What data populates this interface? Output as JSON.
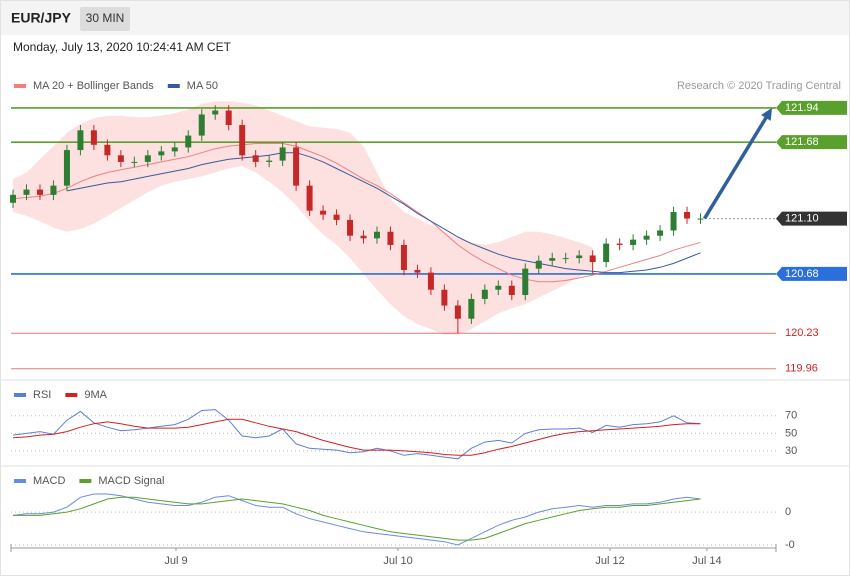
{
  "header": {
    "symbol": "EUR/JPY",
    "timeframe": "30 MIN",
    "datetime": "Monday, July 13, 2020 10:24:41 AM CET"
  },
  "chart_data": [
    {
      "type": "candlestick",
      "annotation": "Research © 2020 Trading Central",
      "xlim": [
        -0.15,
        56.6
      ],
      "xticks": [
        {
          "value": 12.09,
          "label": "Jul 9"
        },
        {
          "value": 28.56,
          "label": "Jul 10"
        },
        {
          "value": 44.29,
          "label": "Jul 12"
        },
        {
          "value": 51.48,
          "label": "Jul 14"
        }
      ],
      "ylim": [
        119.89,
        122.0
      ],
      "up_color": "#2e7d32",
      "down_color": "#c62828",
      "candles": {
        "open": [
          121.22,
          121.28,
          121.32,
          121.28,
          121.35,
          121.62,
          121.77,
          121.66,
          121.58,
          121.53,
          121.53,
          121.58,
          121.61,
          121.64,
          121.73,
          121.89,
          121.92,
          121.81,
          121.58,
          121.53,
          121.54,
          121.64,
          121.35,
          121.16,
          121.13,
          121.09,
          120.97,
          120.95,
          121.0,
          120.9,
          120.71,
          120.69,
          120.56,
          120.44,
          120.34,
          120.49,
          120.56,
          120.59,
          120.52,
          120.72,
          120.78,
          120.8,
          120.8,
          120.82,
          120.77,
          120.91,
          120.9,
          120.94,
          120.97,
          121.01,
          121.15,
          121.1
        ],
        "high": [
          121.32,
          121.36,
          121.36,
          121.39,
          121.66,
          121.81,
          121.81,
          121.7,
          121.62,
          121.57,
          121.62,
          121.65,
          121.68,
          121.77,
          121.93,
          121.96,
          121.96,
          121.85,
          121.62,
          121.58,
          121.68,
          121.68,
          121.39,
          121.2,
          121.17,
          121.13,
          121.01,
          121.04,
          121.04,
          120.94,
          120.75,
          120.73,
          120.6,
          120.48,
          120.53,
          120.6,
          120.63,
          120.63,
          120.76,
          120.82,
          120.84,
          120.84,
          120.86,
          120.86,
          120.95,
          120.95,
          120.98,
          121.01,
          121.05,
          121.19,
          121.19,
          121.14
        ],
        "low": [
          121.18,
          121.24,
          121.24,
          121.24,
          121.31,
          121.58,
          121.62,
          121.54,
          121.49,
          121.49,
          121.49,
          121.54,
          121.57,
          121.6,
          121.69,
          121.85,
          121.77,
          121.54,
          121.49,
          121.49,
          121.5,
          121.31,
          121.12,
          121.09,
          121.05,
          120.93,
          120.91,
          120.91,
          120.86,
          120.67,
          120.65,
          120.52,
          120.4,
          120.23,
          120.3,
          120.45,
          120.52,
          120.48,
          120.48,
          120.68,
          120.74,
          120.76,
          120.76,
          120.68,
          120.73,
          120.86,
          120.86,
          120.9,
          120.93,
          120.97,
          121.06,
          121.06
        ],
        "close": [
          121.28,
          121.32,
          121.28,
          121.35,
          121.62,
          121.77,
          121.66,
          121.58,
          121.53,
          121.53,
          121.58,
          121.61,
          121.64,
          121.73,
          121.89,
          121.92,
          121.81,
          121.58,
          121.53,
          121.54,
          121.64,
          121.35,
          121.16,
          121.13,
          121.09,
          120.97,
          120.95,
          121.0,
          120.9,
          120.71,
          120.69,
          120.56,
          120.44,
          120.34,
          120.49,
          120.56,
          120.59,
          120.52,
          120.72,
          120.78,
          120.8,
          120.8,
          120.82,
          120.77,
          120.91,
          120.9,
          120.94,
          120.97,
          121.01,
          121.15,
          121.1,
          121.1
        ]
      },
      "series": [
        {
          "name": "MA 20 + Bollinger Bands",
          "color": "#f08080",
          "band_color": "#fde0e0",
          "values": [
            121.25,
            121.26,
            121.27,
            121.29,
            121.33,
            121.38,
            121.42,
            121.45,
            121.47,
            121.49,
            121.51,
            121.53,
            121.55,
            121.57,
            121.6,
            121.63,
            121.65,
            121.66,
            121.67,
            121.67,
            121.67,
            121.65,
            121.61,
            121.57,
            121.52,
            121.46,
            121.4,
            121.35,
            121.29,
            121.22,
            121.15,
            121.08,
            120.99,
            120.9,
            120.83,
            120.77,
            120.72,
            120.67,
            120.64,
            120.62,
            120.62,
            120.63,
            120.65,
            120.67,
            120.7,
            120.73,
            120.76,
            120.79,
            120.82,
            120.86,
            120.89,
            120.92
          ],
          "upper": [
            121.4,
            121.45,
            121.55,
            121.65,
            121.75,
            121.82,
            121.86,
            121.88,
            121.88,
            121.87,
            121.87,
            121.88,
            121.9,
            121.93,
            121.97,
            121.99,
            121.99,
            121.98,
            121.96,
            121.92,
            121.88,
            121.84,
            121.8,
            121.79,
            121.78,
            121.75,
            121.65,
            121.45,
            121.25,
            121.15,
            121.1,
            121.05,
            121.0,
            120.95,
            120.92,
            120.9,
            120.92,
            120.96,
            121.0,
            121.0,
            120.98,
            120.95,
            120.92,
            120.88,
            null,
            null,
            null,
            null,
            null,
            null,
            null,
            null
          ],
          "lower": [
            121.15,
            121.12,
            121.08,
            121.03,
            121.0,
            121.02,
            121.06,
            121.12,
            121.18,
            121.24,
            121.3,
            121.35,
            121.38,
            121.4,
            121.42,
            121.45,
            121.48,
            121.5,
            121.45,
            121.38,
            121.3,
            121.2,
            121.08,
            120.98,
            120.9,
            120.8,
            120.68,
            120.56,
            120.45,
            120.36,
            120.3,
            120.26,
            120.22,
            120.22,
            120.26,
            120.32,
            120.38,
            120.42,
            120.45,
            120.5,
            120.55,
            120.6,
            120.66,
            120.72,
            null,
            null,
            null,
            null,
            null,
            null,
            null,
            null
          ]
        },
        {
          "name": "MA 50",
          "color": "#3a5a9a",
          "values": [
            null,
            null,
            null,
            null,
            121.31,
            121.33,
            121.35,
            121.37,
            121.38,
            121.4,
            121.42,
            121.44,
            121.46,
            121.48,
            121.51,
            121.53,
            121.55,
            121.56,
            121.57,
            121.58,
            121.6,
            121.6,
            121.57,
            121.53,
            121.48,
            121.43,
            121.38,
            121.33,
            121.27,
            121.21,
            121.14,
            121.08,
            121.02,
            120.96,
            120.91,
            120.87,
            120.83,
            120.8,
            120.78,
            120.76,
            120.74,
            120.72,
            120.71,
            120.7,
            120.69,
            120.69,
            120.7,
            120.71,
            120.73,
            120.76,
            120.8,
            120.84
          ]
        }
      ],
      "levels": [
        {
          "value": 121.94,
          "color": "#5aa02c",
          "box": true,
          "line": "solid"
        },
        {
          "value": 121.68,
          "color": "#5aa02c",
          "box": true,
          "line": "solid"
        },
        {
          "value": 121.1,
          "label": "121.10",
          "color": "#333333",
          "box": true,
          "line": "dotted"
        },
        {
          "value": 120.68,
          "color": "#2a6fdb",
          "box": true,
          "line": "solid"
        },
        {
          "value": 120.23,
          "color": "#d62020",
          "box": false,
          "line": "solid"
        },
        {
          "value": 119.96,
          "color": "#d62020",
          "box": false,
          "line": "solid"
        }
      ],
      "arrow_color": "#2f5f9f"
    },
    {
      "type": "line",
      "ylim": [
        14,
        105
      ],
      "yticks": [
        30,
        50,
        70
      ],
      "grid": true,
      "series": [
        {
          "name": "RSI",
          "color": "#5b7fd6",
          "values": [
            48,
            50,
            52,
            49,
            65,
            75,
            62,
            57,
            53,
            54,
            56,
            58,
            60,
            66,
            76,
            77,
            65,
            47,
            45,
            47,
            55,
            38,
            33,
            32,
            31,
            28,
            29,
            33,
            30,
            25,
            27,
            25,
            23,
            21,
            33,
            40,
            42,
            39,
            50,
            54,
            55,
            55,
            56,
            51,
            59,
            57,
            60,
            61,
            63,
            70,
            62,
            61
          ]
        },
        {
          "name": "9MA",
          "color": "#d62020",
          "values": [
            45,
            46,
            48,
            49,
            52,
            57,
            61,
            63,
            61,
            58,
            56,
            56,
            56,
            57,
            60,
            63,
            66,
            66,
            62,
            58,
            55,
            52,
            47,
            42,
            38,
            34,
            31,
            31,
            31,
            30,
            29,
            28,
            26,
            25,
            25,
            28,
            32,
            35,
            39,
            43,
            47,
            50,
            52,
            53,
            54,
            55,
            56,
            57,
            58,
            60,
            61,
            61
          ]
        }
      ]
    },
    {
      "type": "line",
      "ylim": [
        -0.2,
        0.25
      ],
      "yticks": [
        {
          "value": -0.2,
          "label": "-0"
        },
        0
      ],
      "grid": true,
      "series": [
        {
          "name": "MACD",
          "color": "#6a8cdc",
          "values": [
            -0.02,
            -0.01,
            -0.01,
            0.0,
            0.03,
            0.09,
            0.11,
            0.11,
            0.1,
            0.08,
            0.06,
            0.05,
            0.04,
            0.04,
            0.06,
            0.09,
            0.1,
            0.07,
            0.04,
            0.03,
            0.03,
            -0.01,
            -0.04,
            -0.06,
            -0.08,
            -0.1,
            -0.12,
            -0.13,
            -0.14,
            -0.15,
            -0.16,
            -0.17,
            -0.18,
            -0.2,
            -0.16,
            -0.12,
            -0.08,
            -0.05,
            -0.03,
            0.0,
            0.02,
            0.03,
            0.04,
            0.03,
            0.04,
            0.04,
            0.05,
            0.05,
            0.06,
            0.08,
            0.09,
            0.08
          ]
        },
        {
          "name": "MACD Signal",
          "color": "#5aa02c",
          "values": [
            -0.02,
            -0.02,
            -0.02,
            -0.01,
            0.0,
            0.02,
            0.05,
            0.08,
            0.09,
            0.09,
            0.08,
            0.07,
            0.06,
            0.05,
            0.05,
            0.06,
            0.07,
            0.08,
            0.07,
            0.06,
            0.05,
            0.03,
            0.01,
            -0.02,
            -0.04,
            -0.06,
            -0.08,
            -0.1,
            -0.12,
            -0.13,
            -0.14,
            -0.15,
            -0.16,
            -0.17,
            -0.17,
            -0.16,
            -0.13,
            -0.1,
            -0.07,
            -0.05,
            -0.03,
            -0.01,
            0.01,
            0.02,
            0.03,
            0.03,
            0.04,
            0.04,
            0.05,
            0.06,
            0.07,
            0.08
          ]
        }
      ]
    }
  ]
}
